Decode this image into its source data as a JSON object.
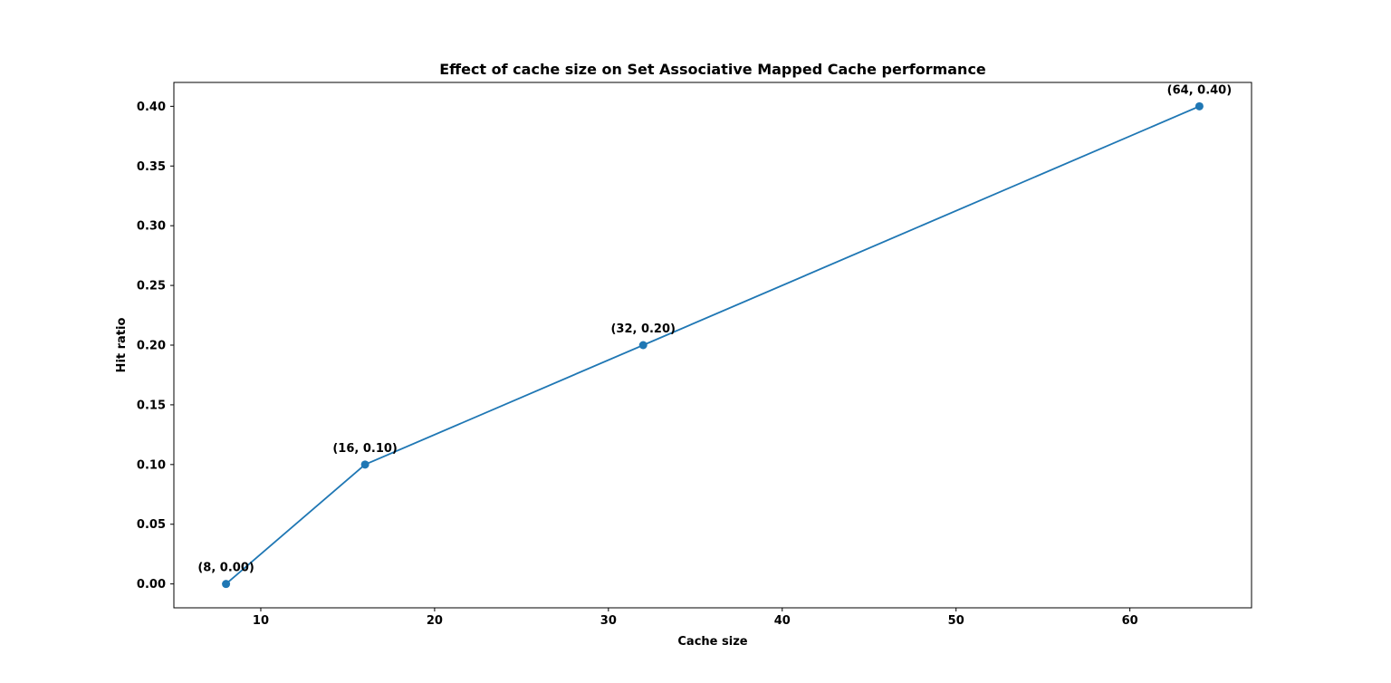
{
  "chart_data": {
    "type": "line",
    "title": "Effect of cache size on Set Associative Mapped Cache performance",
    "xlabel": "Cache size",
    "ylabel": "Hit ratio",
    "xlim": [
      5,
      67
    ],
    "ylim": [
      -0.02,
      0.42
    ],
    "xticks": [
      10,
      20,
      30,
      40,
      50,
      60
    ],
    "xtick_labels": [
      "10",
      "20",
      "30",
      "40",
      "50",
      "60"
    ],
    "yticks": [
      0.0,
      0.05,
      0.1,
      0.15,
      0.2,
      0.25,
      0.3,
      0.35,
      0.4
    ],
    "ytick_labels": [
      "0.00",
      "0.05",
      "0.10",
      "0.15",
      "0.20",
      "0.25",
      "0.30",
      "0.35",
      "0.40"
    ],
    "grid": false,
    "series": [
      {
        "color": "#1f77b4",
        "marker": "circle",
        "x": [
          8,
          16,
          32,
          64
        ],
        "y": [
          0.0,
          0.1,
          0.2,
          0.4
        ],
        "point_labels": [
          "(8, 0.00)",
          "(16, 0.10)",
          "(32, 0.20)",
          "(64, 0.40)"
        ]
      }
    ]
  }
}
